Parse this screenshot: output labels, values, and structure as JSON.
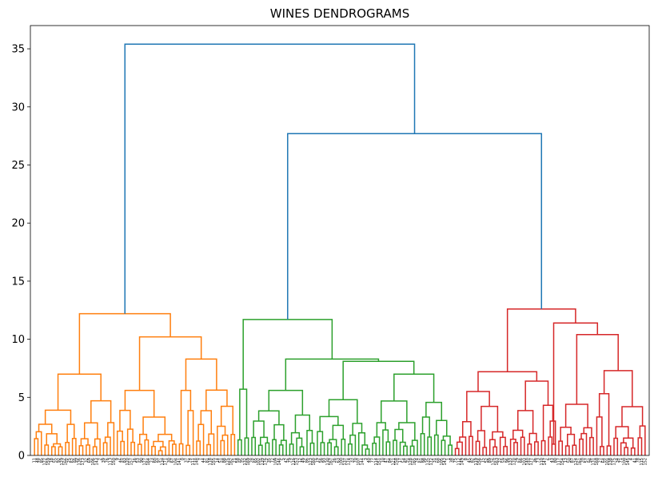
{
  "chart_data": {
    "type": "dendrogram",
    "title": "WINES DENDROGRAMS",
    "xlabel": "",
    "ylabel": "",
    "ylim": [
      0,
      37
    ],
    "yticks": [
      0,
      5,
      10,
      15,
      20,
      25,
      30,
      35
    ],
    "grid": false,
    "legend": "none",
    "leaf_count": 178,
    "colors": {
      "root": "#1f77b4",
      "cluster_orange": "#ff7f0e",
      "cluster_green": "#2ca02c",
      "cluster_red": "#d62728"
    },
    "merges": [
      {
        "height": 35.4,
        "left": "orange",
        "right": "green-red",
        "color": "root"
      },
      {
        "height": 27.7,
        "left": "green",
        "right": "red",
        "color": "root"
      },
      {
        "cluster": "orange",
        "height": 12.2,
        "leaves": [
          0,
          59
        ]
      },
      {
        "cluster": "green",
        "height": 11.7,
        "leaves": [
          59,
          122
        ]
      },
      {
        "cluster": "red",
        "height": 12.6,
        "leaves": [
          122,
          178
        ]
      }
    ]
  }
}
